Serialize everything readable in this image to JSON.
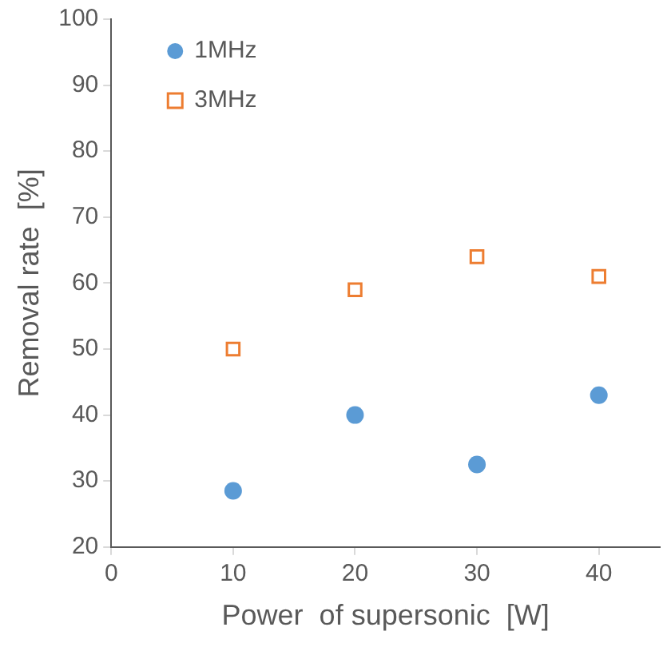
{
  "chart_data": {
    "type": "scatter",
    "xlabel": "Power  of supersonic  [W]",
    "ylabel": "Removal rate  [%]",
    "x": [
      10,
      20,
      30,
      40
    ],
    "series": [
      {
        "name": "1MHz",
        "color": "#5b9bd5",
        "marker": "circle",
        "values": [
          28.5,
          40,
          32.5,
          43
        ]
      },
      {
        "name": "3MHz",
        "color": "#ed7d31",
        "marker": "square",
        "values": [
          50,
          59,
          64,
          61
        ]
      }
    ],
    "xlim": [
      0,
      45
    ],
    "xticks": [
      0,
      10,
      20,
      30,
      40
    ],
    "ylim": [
      20,
      100
    ],
    "yticks": [
      20,
      30,
      40,
      50,
      60,
      70,
      80,
      90,
      100
    ],
    "grid": false,
    "legend": "top left"
  }
}
